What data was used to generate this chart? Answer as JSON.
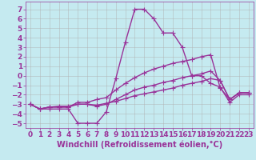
{
  "xlabel": "Windchill (Refroidissement éolien,°C)",
  "background_color": "#c5eaf0",
  "line_color": "#993399",
  "grid_color": "#b0b0b0",
  "xlim": [
    -0.5,
    23.5
  ],
  "ylim": [
    -5.5,
    7.8
  ],
  "yticks": [
    -5,
    -4,
    -3,
    -2,
    -1,
    0,
    1,
    2,
    3,
    4,
    5,
    6,
    7
  ],
  "xticks": [
    0,
    1,
    2,
    3,
    4,
    5,
    6,
    7,
    8,
    9,
    10,
    11,
    12,
    13,
    14,
    15,
    16,
    17,
    18,
    19,
    20,
    21,
    22,
    23
  ],
  "lines": [
    {
      "x": [
        0,
        1,
        2,
        3,
        4,
        5,
        6,
        7,
        8,
        9,
        10,
        11,
        12,
        13,
        14,
        15,
        16,
        17,
        18,
        19,
        20,
        21,
        22,
        23
      ],
      "y": [
        -3,
        -3.5,
        -3.5,
        -3.5,
        -3.5,
        -5,
        -5,
        -5,
        -3.8,
        -0.3,
        3.5,
        7,
        7,
        6,
        4.5,
        4.5,
        3,
        0,
        0,
        -0.8,
        -1.2,
        -2.8,
        -2,
        -2
      ]
    },
    {
      "x": [
        0,
        1,
        2,
        3,
        4,
        5,
        6,
        7,
        8,
        9,
        10,
        11,
        12,
        13,
        14,
        15,
        16,
        17,
        18,
        19,
        20,
        21,
        22,
        23
      ],
      "y": [
        -3,
        -3.5,
        -3.3,
        -3.3,
        -3.3,
        -2.8,
        -2.8,
        -2.5,
        -2.3,
        -1.5,
        -0.8,
        -0.2,
        0.3,
        0.7,
        1.0,
        1.3,
        1.5,
        1.7,
        2.0,
        2.2,
        -1.3,
        -2.5,
        -1.8,
        -1.8
      ]
    },
    {
      "x": [
        0,
        1,
        2,
        3,
        4,
        5,
        6,
        7,
        8,
        9,
        10,
        11,
        12,
        13,
        14,
        15,
        16,
        17,
        18,
        19,
        20,
        21,
        22,
        23
      ],
      "y": [
        -3,
        -3.5,
        -3.3,
        -3.3,
        -3.3,
        -3.0,
        -3.0,
        -3.2,
        -3.0,
        -2.5,
        -2.0,
        -1.5,
        -1.2,
        -1.0,
        -0.7,
        -0.5,
        -0.2,
        0.0,
        0.2,
        0.5,
        -0.5,
        -2.5,
        -1.8,
        -1.8
      ]
    },
    {
      "x": [
        0,
        1,
        2,
        3,
        4,
        5,
        6,
        7,
        8,
        9,
        10,
        11,
        12,
        13,
        14,
        15,
        16,
        17,
        18,
        19,
        20,
        21,
        22,
        23
      ],
      "y": [
        -3,
        -3.5,
        -3.3,
        -3.2,
        -3.2,
        -3.0,
        -3.0,
        -3.1,
        -2.9,
        -2.7,
        -2.4,
        -2.1,
        -1.9,
        -1.7,
        -1.5,
        -1.3,
        -1.0,
        -0.8,
        -0.6,
        -0.3,
        -0.5,
        -2.5,
        -1.8,
        -1.8
      ]
    }
  ],
  "marker": "+",
  "markersize": 4,
  "linewidth": 1.0,
  "font_size": 6.5,
  "xlabel_font_size": 7
}
